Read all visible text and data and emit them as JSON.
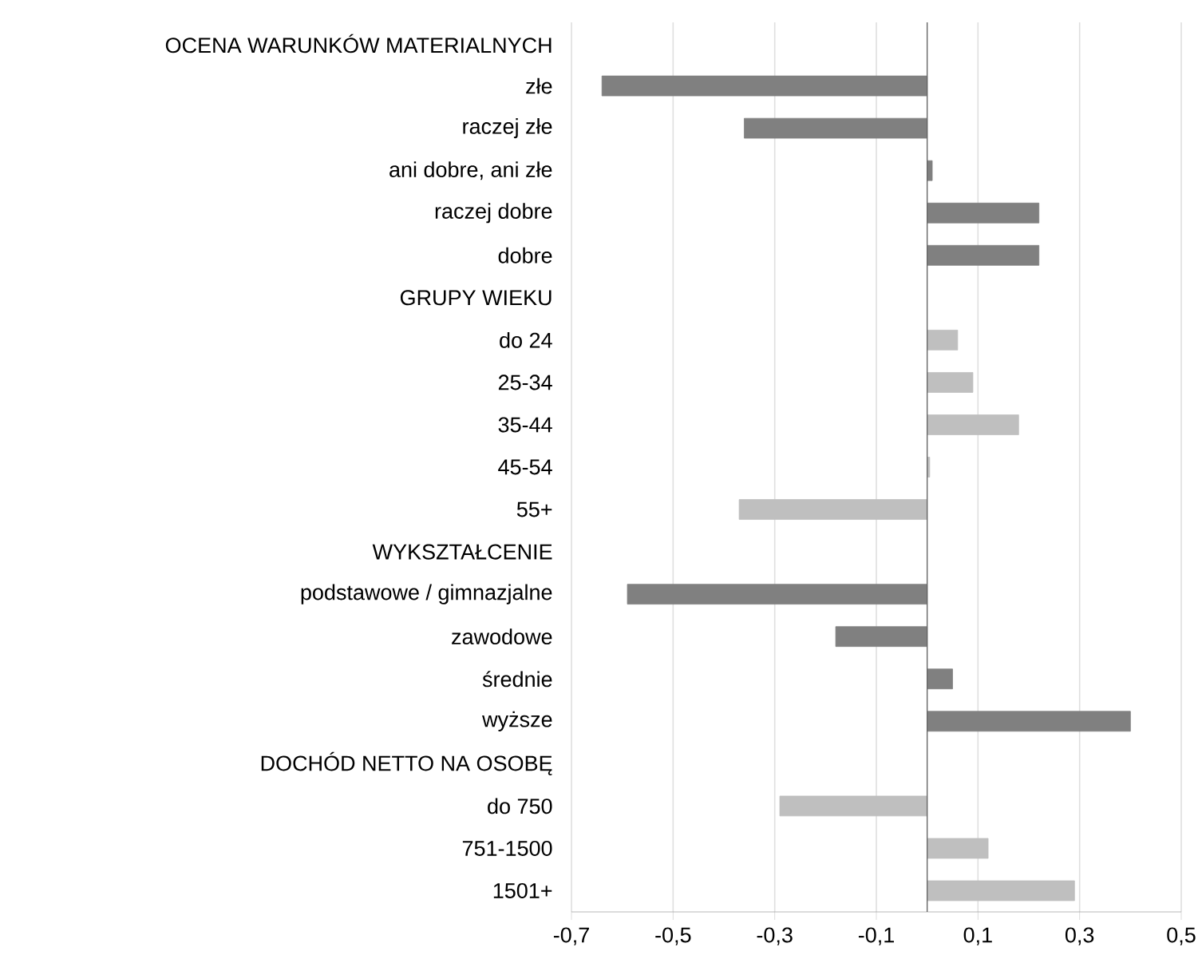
{
  "chart_data": {
    "type": "bar",
    "orientation": "horizontal",
    "categories": [
      "OCENA WARUNKÓW MATERIALNYCH",
      "złe",
      "raczej złe",
      "ani dobre, ani złe",
      "raczej dobre",
      "dobre",
      "GRUPY WIEKU",
      "do 24",
      "25-34",
      "35-44",
      "45-54",
      "55+",
      "WYKSZTAŁCENIE",
      "podstawowe / gimnazjalne",
      "zawodowe",
      "średnie",
      "wyższe",
      "DOCHÓD NETTO NA OSOBĘ",
      "do 750",
      "751-1500",
      "1501+"
    ],
    "values": [
      null,
      -0.64,
      -0.36,
      0.01,
      0.22,
      0.22,
      null,
      0.06,
      0.09,
      0.18,
      0.005,
      -0.37,
      null,
      -0.59,
      -0.18,
      0.05,
      0.4,
      null,
      -0.29,
      0.12,
      0.29
    ],
    "colors": [
      null,
      "#808080",
      "#808080",
      "#808080",
      "#808080",
      "#808080",
      null,
      "#bfbfbf",
      "#bfbfbf",
      "#bfbfbf",
      "#bfbfbf",
      "#bfbfbf",
      null,
      "#808080",
      "#808080",
      "#808080",
      "#808080",
      null,
      "#bfbfbf",
      "#bfbfbf",
      "#bfbfbf"
    ],
    "xlim": [
      -0.7,
      0.5
    ],
    "xticks": [
      {
        "value": -0.7,
        "label": "-0,7"
      },
      {
        "value": -0.5,
        "label": "-0,5"
      },
      {
        "value": -0.3,
        "label": "-0,3"
      },
      {
        "value": -0.1,
        "label": "-0,1"
      },
      {
        "value": 0.1,
        "label": "0,1"
      },
      {
        "value": 0.3,
        "label": "0,3"
      },
      {
        "value": 0.5,
        "label": "0,5"
      }
    ],
    "grid": "x"
  }
}
